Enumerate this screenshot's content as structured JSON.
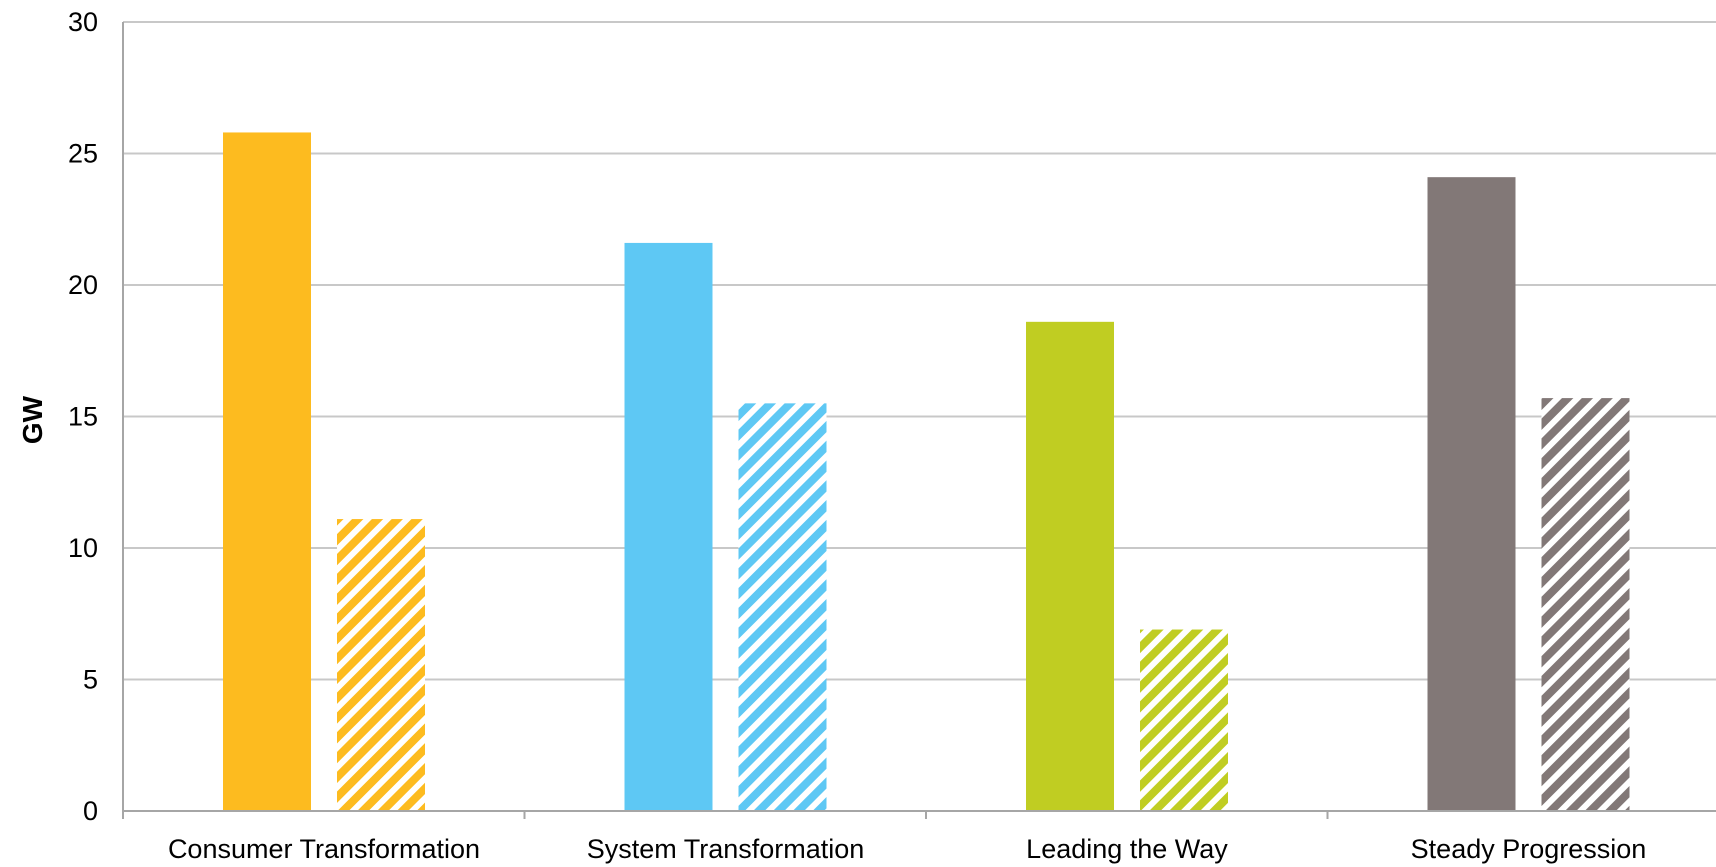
{
  "chart_data": {
    "type": "bar",
    "categories": [
      "Consumer Transformation",
      "System Transformation",
      "Leading the Way",
      "Steady Progression"
    ],
    "series": [
      {
        "style": "solid",
        "values": [
          25.8,
          21.6,
          18.6,
          24.1
        ]
      },
      {
        "style": "hatched",
        "values": [
          11.1,
          15.5,
          6.9,
          15.7
        ]
      }
    ],
    "category_colors": [
      "#fdbb1f",
      "#5ec8f4",
      "#c0cd22",
      "#827877"
    ],
    "title": "",
    "xlabel": "",
    "ylabel": "GW",
    "ylim": [
      0,
      30
    ],
    "yticks": [
      0,
      5,
      10,
      15,
      20,
      25,
      30
    ],
    "grid": true,
    "legend": "none"
  }
}
